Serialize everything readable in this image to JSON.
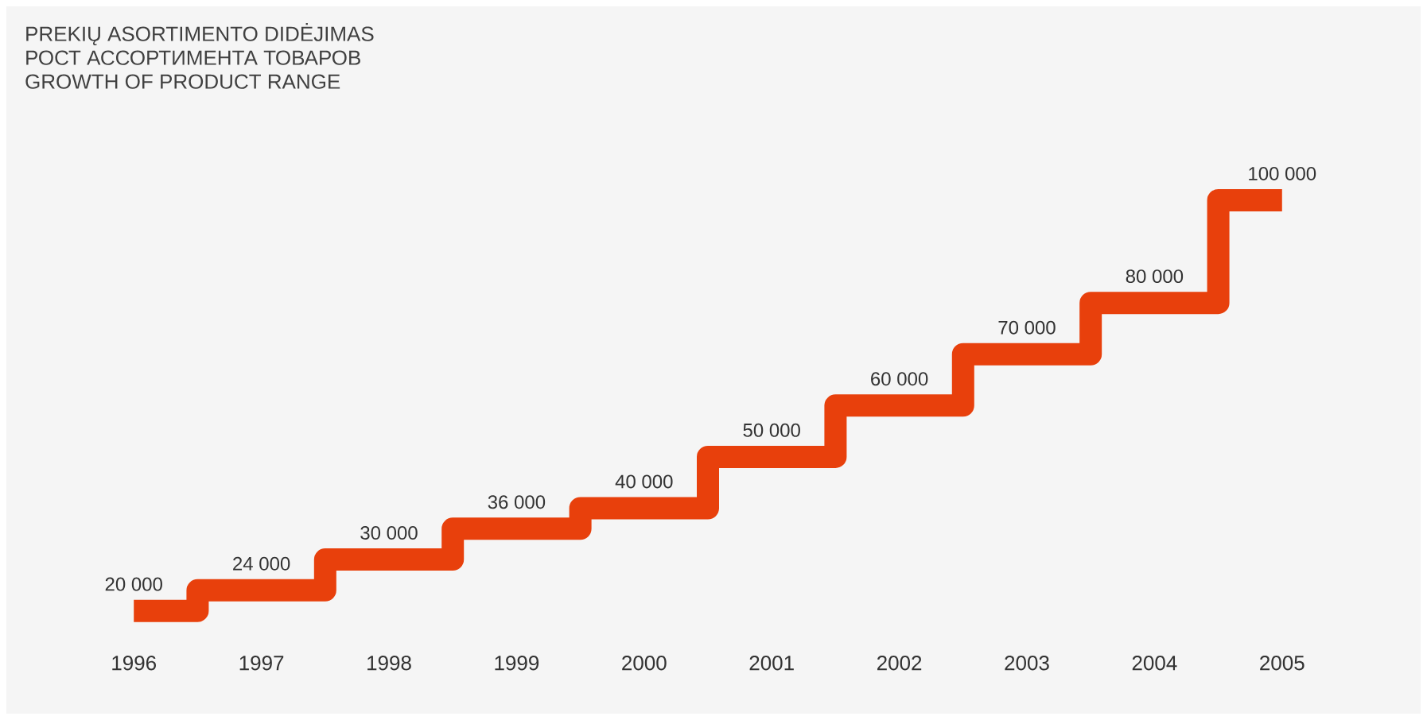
{
  "chart_data": {
    "type": "step",
    "title": "PREKIŲ ASORTIMENTO DIDĖJIMAS",
    "subtitle": "РОСТ АССОРТИМЕНТА ТОВАРОВ",
    "annotations": [
      "GROWTH OF PRODUCT RANGE"
    ],
    "categories": [
      "1996",
      "1997",
      "1998",
      "1999",
      "2000",
      "2001",
      "2002",
      "2003",
      "2004",
      "2005"
    ],
    "values": [
      20000,
      24000,
      30000,
      36000,
      40000,
      50000,
      60000,
      70000,
      80000,
      100000
    ],
    "value_labels": [
      "20 000",
      "24 000",
      "30 000",
      "36 000",
      "40 000",
      "50 000",
      "60 000",
      "70 000",
      "80 000",
      "100 000"
    ],
    "color": "#e8400c",
    "tick_labels": "x",
    "grid": false
  }
}
